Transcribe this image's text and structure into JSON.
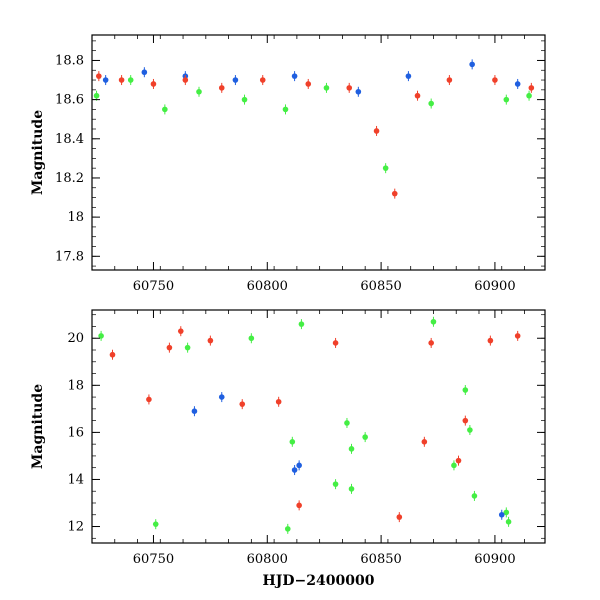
{
  "chart_data": [
    {
      "panel": "top",
      "type": "scatter",
      "xlabel": "",
      "ylabel": "Magnitude",
      "xlim": [
        60723,
        60922
      ],
      "ylim": [
        18.93,
        17.73
      ],
      "xticks": [
        60750,
        60800,
        60850,
        60900
      ],
      "yticks": [
        17.8,
        18,
        18.2,
        18.4,
        18.6,
        18.8
      ],
      "ytick_labels": [
        "17.8",
        "18",
        "18.2",
        "18.4",
        "18.6",
        "18.8"
      ],
      "grid": false,
      "series": [
        {
          "color": "#44ee44",
          "points": [
            [
              60725,
              18.62
            ],
            [
              60740,
              18.7
            ],
            [
              60755,
              18.55
            ],
            [
              60770,
              18.64
            ],
            [
              60790,
              18.6
            ],
            [
              60808,
              18.55
            ],
            [
              60826,
              18.66
            ],
            [
              60852,
              18.25
            ],
            [
              60872,
              18.58
            ],
            [
              60905,
              18.6
            ],
            [
              60915,
              18.62
            ]
          ]
        },
        {
          "color": "#1f5fe0",
          "points": [
            [
              60729,
              18.7
            ],
            [
              60746,
              18.74
            ],
            [
              60764,
              18.72
            ],
            [
              60786,
              18.7
            ],
            [
              60812,
              18.72
            ],
            [
              60840,
              18.64
            ],
            [
              60862,
              18.72
            ],
            [
              60890,
              18.78
            ],
            [
              60910,
              18.68
            ]
          ]
        },
        {
          "color": "#f0402a",
          "points": [
            [
              60726,
              18.72
            ],
            [
              60736,
              18.7
            ],
            [
              60750,
              18.68
            ],
            [
              60764,
              18.7
            ],
            [
              60780,
              18.66
            ],
            [
              60798,
              18.7
            ],
            [
              60818,
              18.68
            ],
            [
              60836,
              18.66
            ],
            [
              60848,
              18.44
            ],
            [
              60856,
              18.12
            ],
            [
              60866,
              18.62
            ],
            [
              60880,
              18.7
            ],
            [
              60900,
              18.7
            ],
            [
              60916,
              18.66
            ]
          ]
        }
      ]
    },
    {
      "panel": "bottom",
      "type": "scatter",
      "xlabel": "HJD−2400000",
      "ylabel": "Magnitude",
      "xlim": [
        60723,
        60922
      ],
      "ylim": [
        21.2,
        11.3
      ],
      "xticks": [
        60750,
        60800,
        60850,
        60900
      ],
      "yticks": [
        12,
        14,
        16,
        18,
        20
      ],
      "ytick_labels": [
        "12",
        "14",
        "16",
        "18",
        "20"
      ],
      "grid": false,
      "series": [
        {
          "color": "#44ee44",
          "points": [
            [
              60727,
              20.1
            ],
            [
              60751,
              12.1
            ],
            [
              60765,
              19.6
            ],
            [
              60793,
              20.0
            ],
            [
              60809,
              11.9
            ],
            [
              60811,
              15.6
            ],
            [
              60815,
              20.6
            ],
            [
              60830,
              13.8
            ],
            [
              60835,
              16.4
            ],
            [
              60837,
              13.6
            ],
            [
              60837,
              15.3
            ],
            [
              60843,
              15.8
            ],
            [
              60873,
              20.7
            ],
            [
              60882,
              14.6
            ],
            [
              60887,
              17.8
            ],
            [
              60889,
              16.1
            ],
            [
              60891,
              13.3
            ],
            [
              60905,
              12.6
            ],
            [
              60906,
              12.2
            ]
          ]
        },
        {
          "color": "#1f5fe0",
          "points": [
            [
              60768,
              16.9
            ],
            [
              60780,
              17.5
            ],
            [
              60812,
              14.4
            ],
            [
              60814,
              14.6
            ],
            [
              60903,
              12.5
            ]
          ]
        },
        {
          "color": "#f0402a",
          "points": [
            [
              60732,
              19.3
            ],
            [
              60748,
              17.4
            ],
            [
              60757,
              19.6
            ],
            [
              60762,
              20.3
            ],
            [
              60775,
              19.9
            ],
            [
              60789,
              17.2
            ],
            [
              60805,
              17.3
            ],
            [
              60814,
              12.9
            ],
            [
              60830,
              19.8
            ],
            [
              60858,
              12.4
            ],
            [
              60869,
              15.6
            ],
            [
              60872,
              19.8
            ],
            [
              60884,
              14.8
            ],
            [
              60887,
              16.5
            ],
            [
              60898,
              19.9
            ],
            [
              60910,
              20.1
            ]
          ]
        }
      ]
    }
  ]
}
